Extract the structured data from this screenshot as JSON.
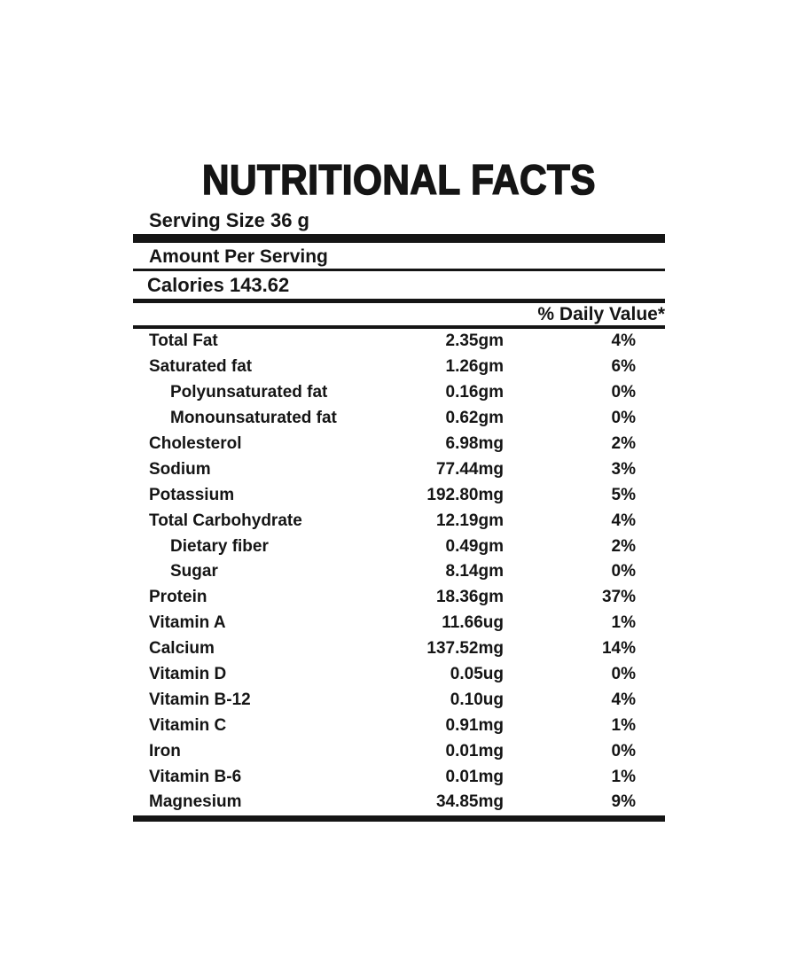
{
  "label": {
    "title": "NUTRITIONAL FACTS",
    "serving_size": {
      "label": "Serving Size",
      "value": "36 g"
    },
    "amount_per_serving": "Amount Per Serving",
    "calories": {
      "label": "Calories",
      "value": "143.62"
    },
    "daily_value_header": "% Daily Value*",
    "rows": [
      {
        "name": "Total Fat",
        "amount": "2.35gm",
        "daily_value": "4%",
        "indent": false
      },
      {
        "name": "Saturated fat",
        "amount": "1.26gm",
        "daily_value": "6%",
        "indent": false
      },
      {
        "name": "Polyunsaturated fat",
        "amount": "0.16gm",
        "daily_value": "0%",
        "indent": true
      },
      {
        "name": "Monounsaturated fat",
        "amount": "0.62gm",
        "daily_value": "0%",
        "indent": true
      },
      {
        "name": "Cholesterol",
        "amount": "6.98mg",
        "daily_value": "2%",
        "indent": false
      },
      {
        "name": "Sodium",
        "amount": "77.44mg",
        "daily_value": "3%",
        "indent": false
      },
      {
        "name": "Potassium",
        "amount": "192.80mg",
        "daily_value": "5%",
        "indent": false
      },
      {
        "name": "Total Carbohydrate",
        "amount": "12.19gm",
        "daily_value": "4%",
        "indent": false
      },
      {
        "name": "Dietary fiber",
        "amount": "0.49gm",
        "daily_value": "2%",
        "indent": true
      },
      {
        "name": "Sugar",
        "amount": "8.14gm",
        "daily_value": "0%",
        "indent": true
      },
      {
        "name": "Protein",
        "amount": "18.36gm",
        "daily_value": "37%",
        "indent": false
      },
      {
        "name": "Vitamin A",
        "amount": "11.66ug",
        "daily_value": "1%",
        "indent": false
      },
      {
        "name": "Calcium",
        "amount": "137.52mg",
        "daily_value": "14%",
        "indent": false
      },
      {
        "name": "Vitamin D",
        "amount": "0.05ug",
        "daily_value": "0%",
        "indent": false
      },
      {
        "name": "Vitamin B-12",
        "amount": "0.10ug",
        "daily_value": "4%",
        "indent": false
      },
      {
        "name": "Vitamin C",
        "amount": "0.91mg",
        "daily_value": "1%",
        "indent": false
      },
      {
        "name": "Iron",
        "amount": "0.01mg",
        "daily_value": "0%",
        "indent": false
      },
      {
        "name": "Vitamin B-6",
        "amount": "0.01mg",
        "daily_value": "1%",
        "indent": false
      },
      {
        "name": "Magnesium",
        "amount": "34.85mg",
        "daily_value": "9%",
        "indent": false
      }
    ]
  },
  "colors": {
    "text": "#151515",
    "background": "#ffffff"
  }
}
